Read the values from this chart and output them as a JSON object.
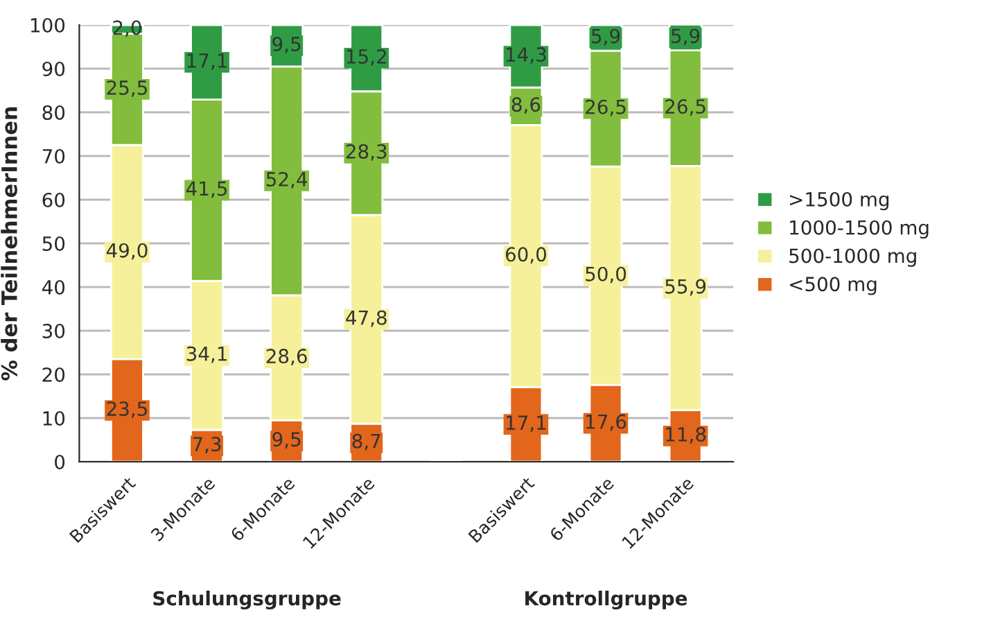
{
  "chart_data": {
    "type": "bar",
    "stacked": true,
    "ylabel": "% der TeilnehmerInnen",
    "categories": [
      "Basiswert",
      "3-Monate",
      "6-Monate",
      "12-Monate",
      null,
      "Basiswert",
      "6-Monate",
      "12-Monate"
    ],
    "series": [
      {
        "name": "<500 mg",
        "color": "#e2661b",
        "values": [
          23.5,
          7.3,
          9.5,
          8.7,
          null,
          17.1,
          17.6,
          11.8
        ],
        "value_labels": [
          "23,5",
          "7,3",
          "9,5",
          "8,7",
          null,
          "17,1",
          "17,6",
          "11,8"
        ]
      },
      {
        "name": "500-1000 mg",
        "color": "#f6f09a",
        "values": [
          49.0,
          34.1,
          28.6,
          47.8,
          null,
          60.0,
          50.0,
          55.9
        ],
        "value_labels": [
          "49,0",
          "34,1",
          "28,6",
          "47,8",
          null,
          "60,0",
          "50,0",
          "55,9"
        ]
      },
      {
        "name": "1000-1500 mg",
        "color": "#82bd3e",
        "values": [
          25.5,
          41.5,
          52.4,
          28.3,
          null,
          8.6,
          26.5,
          26.5
        ],
        "value_labels": [
          "25,5",
          "41,5",
          "52,4",
          "28,3",
          null,
          "8,6",
          "26,5",
          "26,5"
        ]
      },
      {
        "name": ">1500 mg",
        "color": "#2f9c45",
        "values": [
          2.0,
          17.1,
          9.5,
          15.2,
          null,
          14.3,
          5.9,
          5.9
        ],
        "value_labels": [
          "2,0",
          "17,1",
          "9,5",
          "15,2",
          null,
          "14,3",
          "5,9",
          "5,9"
        ]
      }
    ],
    "ylim": [
      0,
      100
    ],
    "yticks": [
      0,
      10,
      20,
      30,
      40,
      50,
      60,
      70,
      80,
      90,
      100
    ],
    "grid": "y",
    "legend": "right",
    "annotations": [
      "Schulungsgruppe",
      "Kontrollgruppe"
    ]
  }
}
